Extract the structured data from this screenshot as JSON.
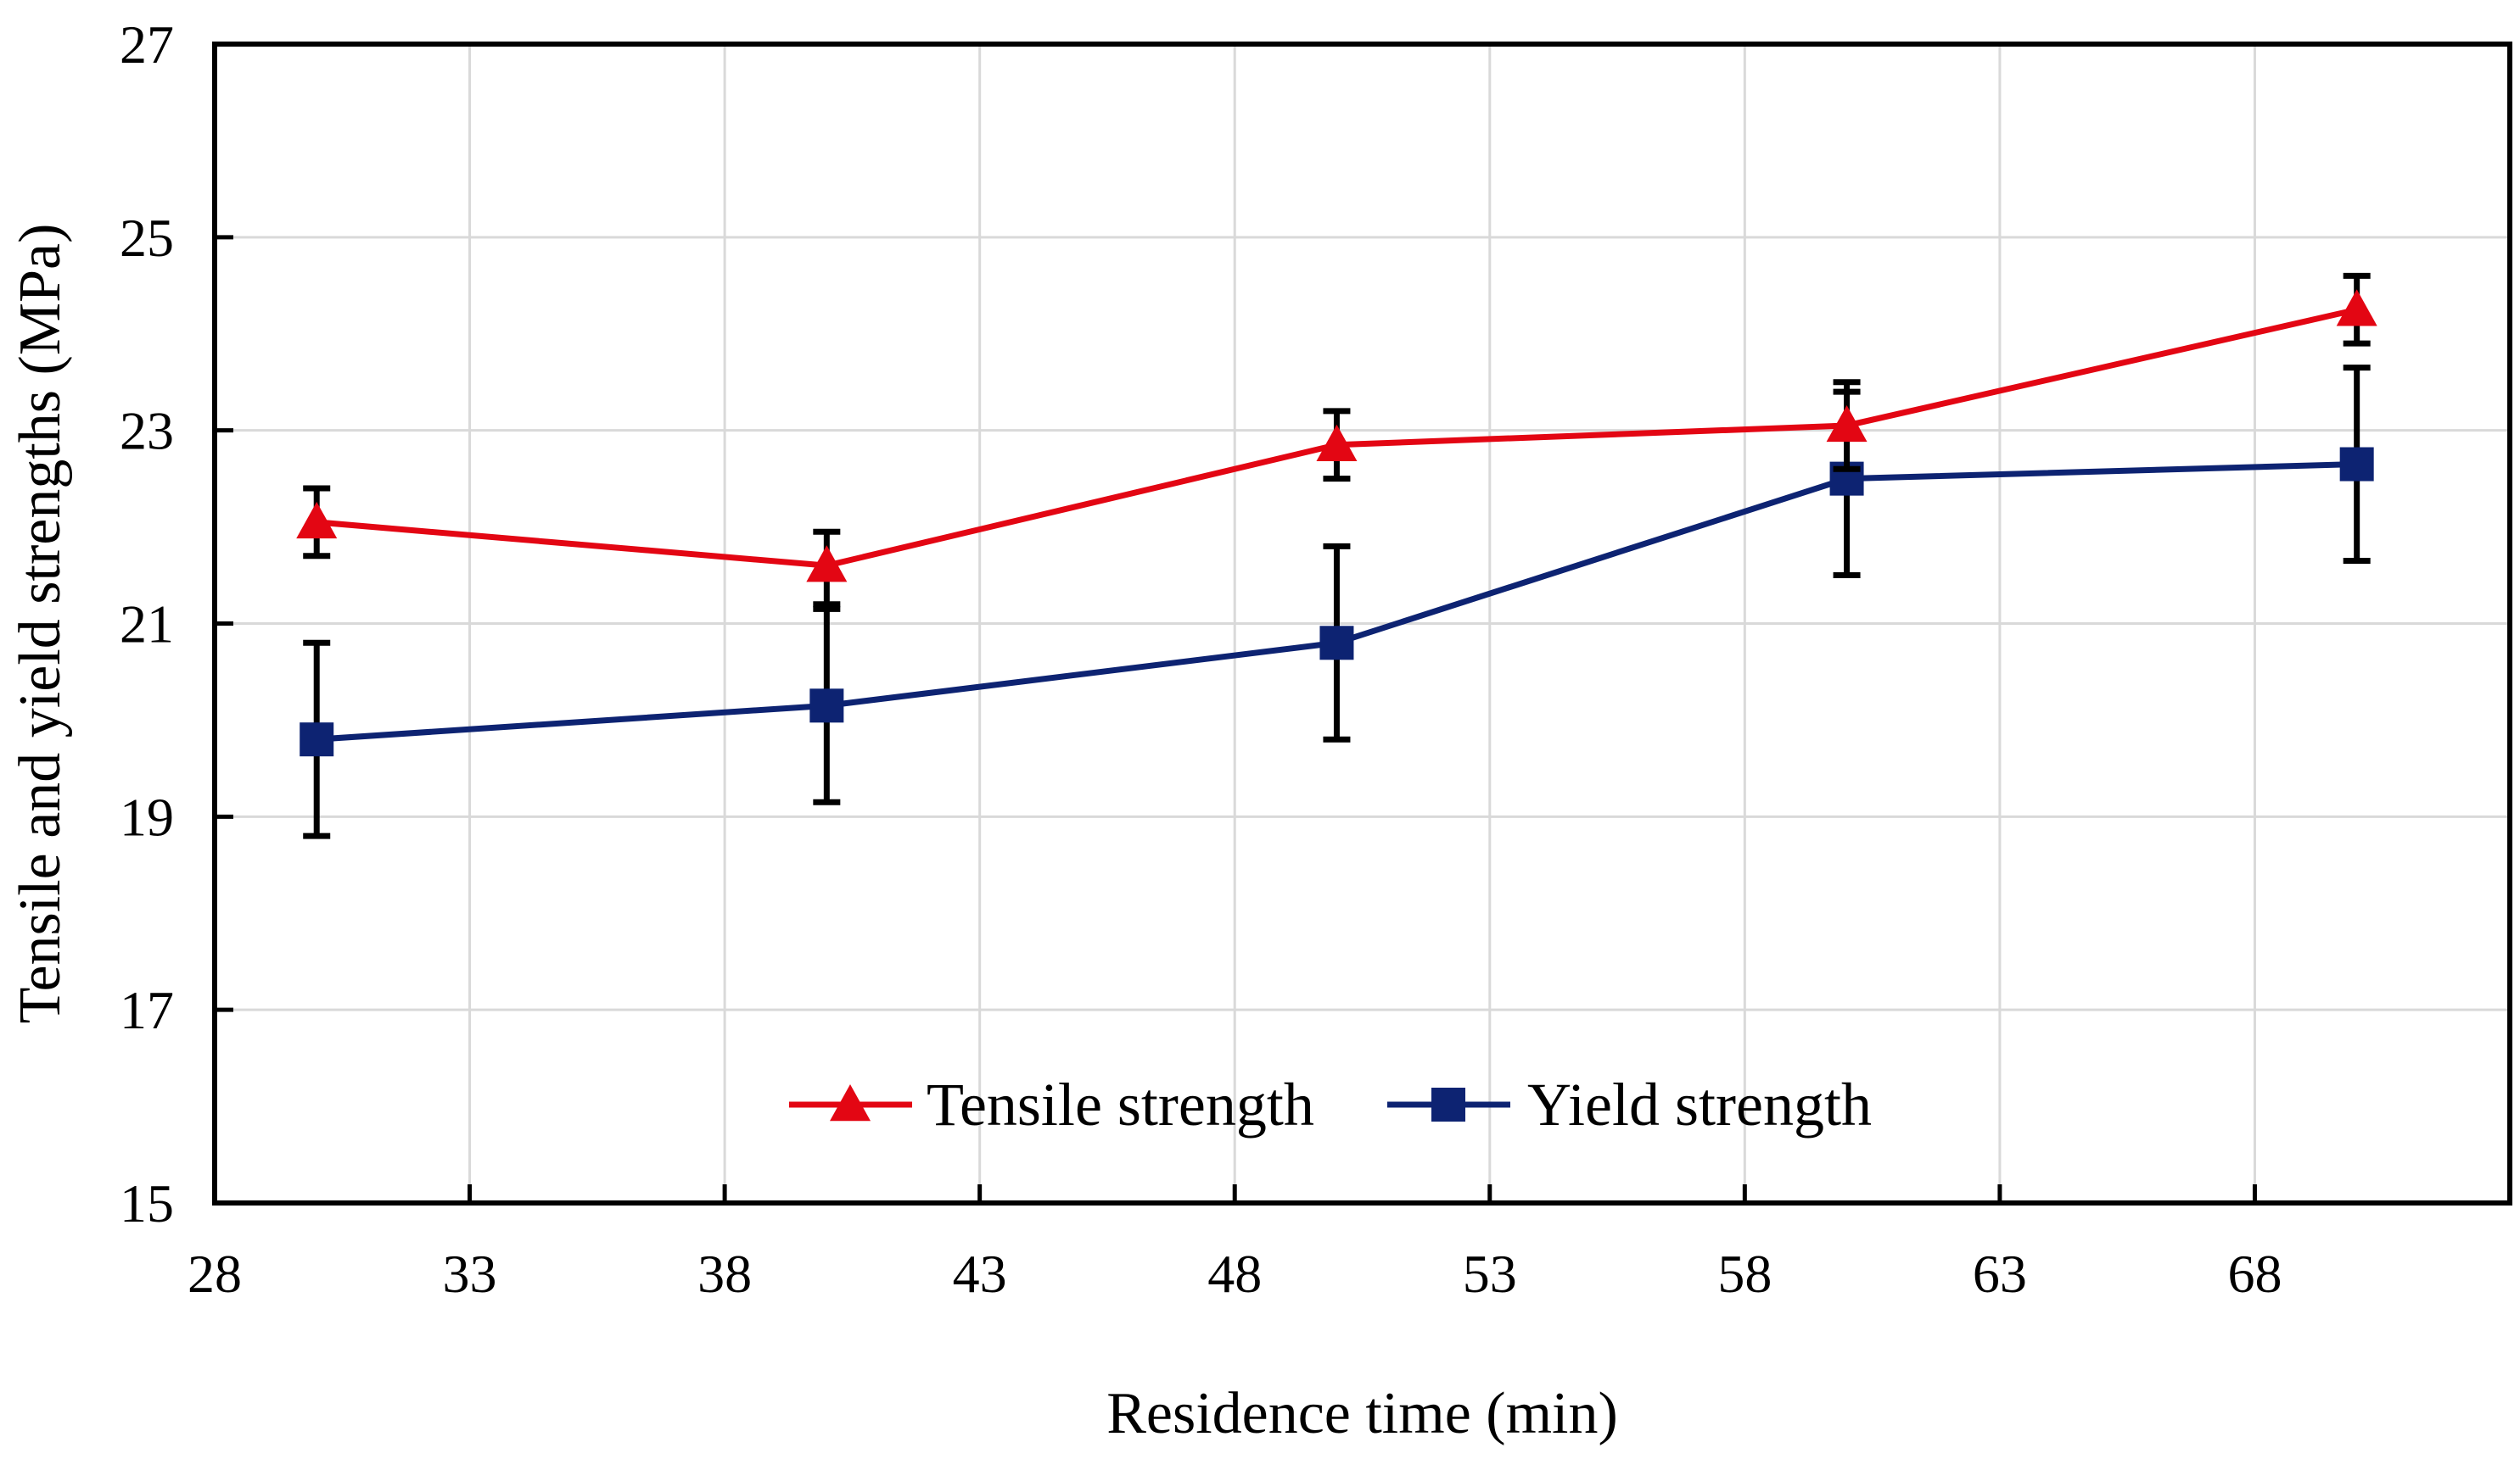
{
  "chart_data": {
    "type": "line",
    "title": "",
    "xlabel": "Residence time (min)",
    "ylabel": "Tensile and yield strengths (MPa)",
    "xlim": [
      28,
      73
    ],
    "ylim": [
      15,
      27
    ],
    "xticks": [
      28,
      33,
      38,
      43,
      48,
      53,
      58,
      63,
      68
    ],
    "yticks": [
      15,
      17,
      19,
      21,
      23,
      25,
      27
    ],
    "grid": true,
    "legend_position": "bottom-center",
    "series": [
      {
        "name": "Tensile strength",
        "color": "#e30613",
        "marker": "triangle",
        "x": [
          30,
          40,
          50,
          60,
          70
        ],
        "y": [
          22.05,
          21.6,
          22.85,
          23.05,
          24.25
        ],
        "error_low": [
          21.7,
          21.15,
          22.5,
          22.6,
          23.9
        ],
        "error_high": [
          22.4,
          21.95,
          23.2,
          23.5,
          24.6
        ]
      },
      {
        "name": "Yield strength",
        "color": "#0d2372",
        "marker": "square",
        "x": [
          30,
          40,
          50,
          60,
          70
        ],
        "y": [
          19.8,
          20.15,
          20.8,
          22.5,
          22.65
        ],
        "error_low": [
          18.8,
          19.15,
          19.8,
          21.5,
          21.65
        ],
        "error_high": [
          20.8,
          21.2,
          21.8,
          23.4,
          23.65
        ]
      }
    ]
  }
}
